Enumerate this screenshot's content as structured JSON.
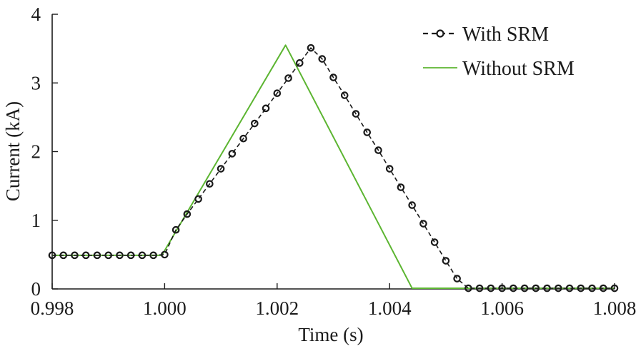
{
  "chart_data": {
    "type": "line",
    "title": "",
    "xlabel": "Time (s)",
    "ylabel": "Current (kA)",
    "xlim": [
      0.998,
      1.008
    ],
    "ylim": [
      0,
      4
    ],
    "xticks": [
      0.998,
      1.0,
      1.002,
      1.004,
      1.006,
      1.008
    ],
    "xtick_labels": [
      "0.998",
      "1.000",
      "1.002",
      "1.004",
      "1.006",
      "1.008"
    ],
    "yticks": [
      0,
      1,
      2,
      3,
      4
    ],
    "ytick_labels": [
      "0",
      "1",
      "2",
      "3",
      "4"
    ],
    "grid": false,
    "legend_position": "top-right",
    "series": [
      {
        "name": "With SRM",
        "style": "dashed-circle-markers",
        "color": "#1a1a1a",
        "x": [
          0.998,
          0.9982,
          0.9984,
          0.9986,
          0.9988,
          0.999,
          0.9992,
          0.9994,
          0.9996,
          0.9998,
          1.0,
          1.0002,
          1.0004,
          1.0006,
          1.0008,
          1.001,
          1.0012,
          1.0014,
          1.0016,
          1.0018,
          1.002,
          1.0022,
          1.0024,
          1.0026,
          1.0028,
          1.003,
          1.0032,
          1.0034,
          1.0036,
          1.0038,
          1.004,
          1.0042,
          1.0044,
          1.0046,
          1.0048,
          1.005,
          1.0052,
          1.0054,
          1.0056,
          1.0058,
          1.006,
          1.0062,
          1.0064,
          1.0066,
          1.0068,
          1.007,
          1.0072,
          1.0074,
          1.0076,
          1.0078,
          1.008
        ],
        "y": [
          0.49,
          0.49,
          0.49,
          0.49,
          0.49,
          0.49,
          0.49,
          0.49,
          0.49,
          0.49,
          0.5,
          0.86,
          1.09,
          1.31,
          1.53,
          1.75,
          1.97,
          2.19,
          2.41,
          2.63,
          2.85,
          3.07,
          3.29,
          3.51,
          3.35,
          3.08,
          2.82,
          2.55,
          2.28,
          2.02,
          1.75,
          1.48,
          1.22,
          0.95,
          0.68,
          0.41,
          0.15,
          0.01,
          0.01,
          0.01,
          0.01,
          0.01,
          0.01,
          0.01,
          0.01,
          0.01,
          0.01,
          0.01,
          0.01,
          0.01,
          0.01
        ]
      },
      {
        "name": "Without SRM",
        "style": "solid",
        "color": "#5cb531",
        "x": [
          0.998,
          0.99995,
          1.00215,
          1.0044,
          1.008
        ],
        "y": [
          0.49,
          0.49,
          3.55,
          0.01,
          0.01
        ]
      }
    ]
  }
}
